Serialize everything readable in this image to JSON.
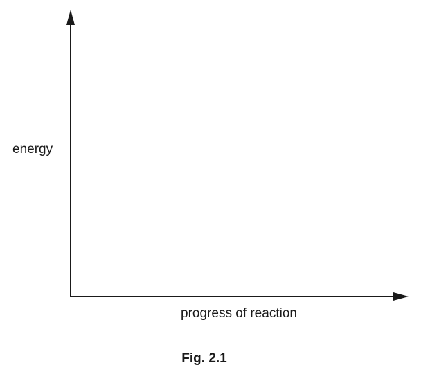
{
  "axes": {
    "y_label": "energy",
    "x_label": "progress of reaction"
  },
  "caption": "Fig. 2.1"
}
